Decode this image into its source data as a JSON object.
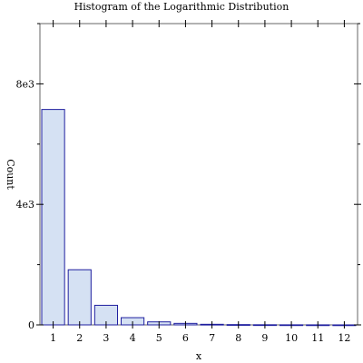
{
  "chart_data": {
    "type": "bar",
    "title": "Histogram of the Logarithmic Distribution",
    "xlabel": "x",
    "ylabel": "Count",
    "categories": [
      "1",
      "2",
      "3",
      "4",
      "5",
      "6",
      "7",
      "8",
      "9",
      "10",
      "11",
      "12"
    ],
    "values": [
      7150,
      1830,
      650,
      240,
      100,
      50,
      20,
      10,
      5,
      3,
      2,
      1
    ],
    "ylim": [
      0,
      10000
    ],
    "y_ticks": [
      {
        "value": 0,
        "label": "0"
      },
      {
        "value": 4000,
        "label": "4e3"
      },
      {
        "value": 8000,
        "label": "8e3"
      }
    ],
    "y_minor_ticks": [
      2000,
      6000,
      10000
    ],
    "grid": false,
    "colors": {
      "bar_fill": "#d5e1f3",
      "bar_stroke": "#1f1f9f",
      "axis": "#000000"
    }
  }
}
